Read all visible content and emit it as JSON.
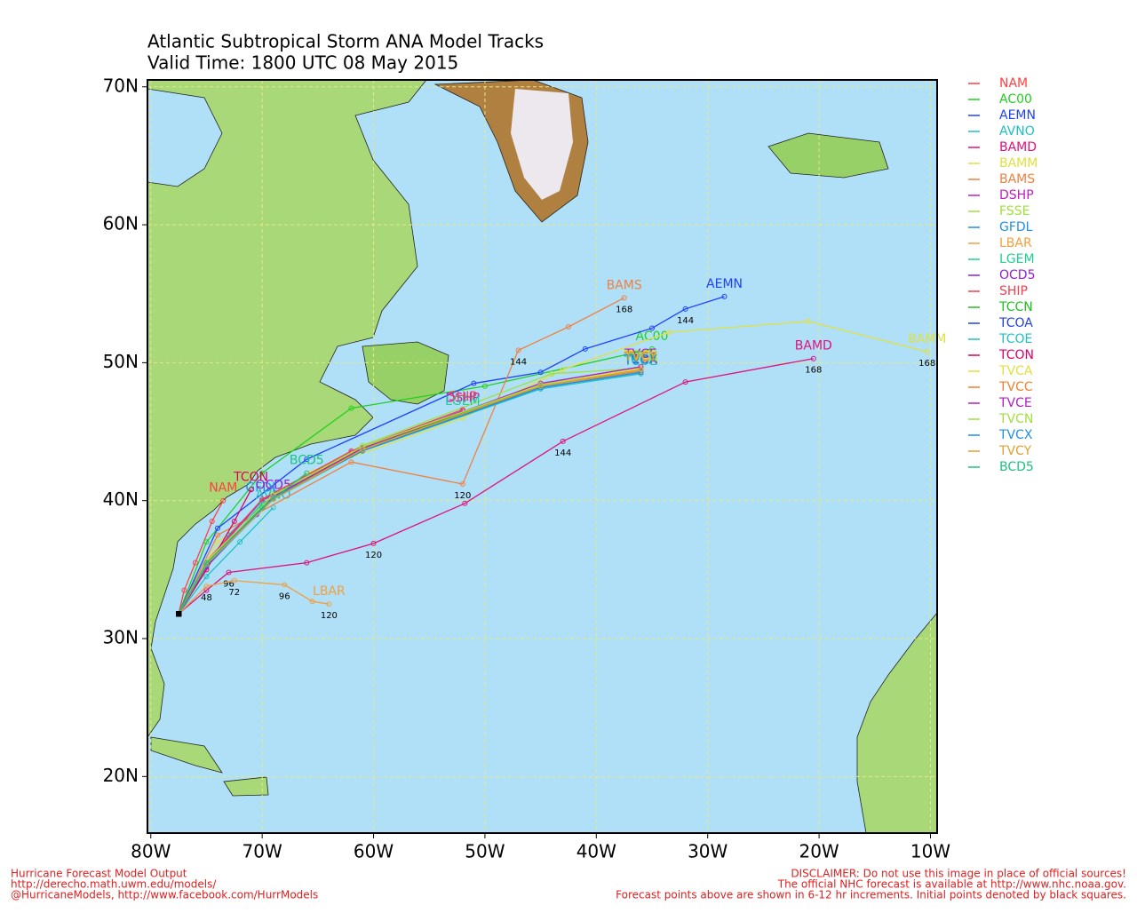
{
  "chart_data": {
    "type": "track-map",
    "title": "Atlantic Subtropical Storm ANA Model Tracks",
    "subtitle": "Valid Time: 1800 UTC 08 May 2015",
    "xlim": [
      -80.3,
      -9.4
    ],
    "ylim": [
      15.9,
      70.5
    ],
    "xticks": [
      {
        "value": -80,
        "label": "80W"
      },
      {
        "value": -70,
        "label": "70W"
      },
      {
        "value": -60,
        "label": "60W"
      },
      {
        "value": -50,
        "label": "50W"
      },
      {
        "value": -40,
        "label": "40W"
      },
      {
        "value": -30,
        "label": "30W"
      },
      {
        "value": -20,
        "label": "20W"
      },
      {
        "value": -10,
        "label": "10W"
      }
    ],
    "yticks": [
      {
        "value": 20,
        "label": "20N"
      },
      {
        "value": 30,
        "label": "30N"
      },
      {
        "value": 40,
        "label": "40N"
      },
      {
        "value": 50,
        "label": "50N"
      },
      {
        "value": 60,
        "label": "60N"
      },
      {
        "value": 70,
        "label": "70N"
      }
    ],
    "grid": true,
    "series": [
      {
        "name": "NAM",
        "color": "#ff4040",
        "x": [
          -77.5,
          -77,
          -76,
          -74.5,
          -73.5
        ],
        "y": [
          31.8,
          33.5,
          35.5,
          38.5,
          40
        ]
      },
      {
        "name": "AC00",
        "color": "#20d020",
        "x": [
          -77.5,
          -75,
          -70,
          -62,
          -50,
          -35
        ],
        "y": [
          31.8,
          37,
          42,
          46.7,
          48.3,
          51
        ]
      },
      {
        "name": "AEMN",
        "color": "#2040ff",
        "x": [
          -77.5,
          -74,
          -66,
          -51,
          -45,
          -41,
          -35,
          -32,
          -28.5
        ],
        "y": [
          31.8,
          38,
          43,
          48.5,
          49.3,
          51,
          52.5,
          53.9,
          54.8
        ],
        "hours": [
          null,
          null,
          null,
          null,
          null,
          null,
          null,
          144,
          null
        ]
      },
      {
        "name": "AVNO",
        "color": "#20c0c0",
        "x": [
          -77.5,
          -75,
          -72,
          -69
        ],
        "y": [
          31.8,
          34.5,
          37,
          39.5
        ]
      },
      {
        "name": "BAMD",
        "color": "#e0107a",
        "x": [
          -77.5,
          -75,
          -73,
          -66,
          -60,
          -51.8,
          -43,
          -32,
          -20.5
        ],
        "y": [
          31.8,
          33.5,
          34.8,
          35.5,
          36.9,
          39.8,
          44.3,
          48.6,
          50.3
        ],
        "hours": [
          null,
          null,
          96,
          null,
          120,
          null,
          144,
          null,
          168
        ]
      },
      {
        "name": "BAMM",
        "color": "#e0e040",
        "x": [
          -77.5,
          -74,
          -66,
          -52,
          -43,
          -33.5,
          -21,
          -10.3
        ],
        "y": [
          31.8,
          37,
          42,
          46,
          49.5,
          52.2,
          53,
          50.8
        ],
        "hours": [
          null,
          null,
          null,
          null,
          null,
          null,
          null,
          168
        ]
      },
      {
        "name": "BAMS",
        "color": "#f08040",
        "x": [
          -77.5,
          -74,
          -62,
          -52,
          -47,
          -42.5,
          -37.5
        ],
        "y": [
          31.8,
          37.5,
          42.8,
          41.2,
          50.9,
          52.6,
          54.7
        ],
        "hours": [
          null,
          null,
          null,
          120,
          144,
          null,
          168
        ]
      },
      {
        "name": "DSHP",
        "color": "#c020c0",
        "x": [
          -77.5,
          -75,
          -70,
          -62,
          -52
        ],
        "y": [
          31.8,
          35.5,
          40,
          43.5,
          46.5
        ]
      },
      {
        "name": "FSSE",
        "color": "#a0e040",
        "x": [
          -77.5,
          -75,
          -69,
          -61,
          -44,
          -36
        ],
        "y": [
          31.8,
          35.5,
          40.5,
          44,
          49.2,
          49.6
        ]
      },
      {
        "name": "GFDL",
        "color": "#2090e0",
        "x": [
          -77.5,
          -76,
          -73,
          -70
        ],
        "y": [
          31.8,
          34,
          37.5,
          40
        ]
      },
      {
        "name": "LBAR",
        "color": "#f0a040",
        "x": [
          -77.5,
          -75,
          -72.5,
          -68,
          -65.5,
          -64
        ],
        "y": [
          31.8,
          33.8,
          34.2,
          33.9,
          32.7,
          32.5
        ],
        "hours": [
          null,
          48,
          72,
          96,
          null,
          120
        ]
      },
      {
        "name": "LGEM",
        "color": "#20d090",
        "x": [
          -77.5,
          -75,
          -70,
          -62,
          -52
        ],
        "y": [
          31.8,
          35.3,
          39.8,
          43.3,
          46.3
        ]
      },
      {
        "name": "OCD5",
        "color": "#9020d0",
        "x": [
          -77.5,
          -75,
          -70.5,
          -69
        ],
        "y": [
          31.8,
          35.2,
          39,
          40.2
        ]
      },
      {
        "name": "SHIP",
        "color": "#f04050",
        "x": [
          -77.5,
          -75,
          -70,
          -62,
          -52
        ],
        "y": [
          31.8,
          35.6,
          40.1,
          43.6,
          46.6
        ]
      },
      {
        "name": "TCCN",
        "color": "#20c020",
        "x": [
          -77.5,
          -75,
          -69,
          -61,
          -45,
          -36
        ],
        "y": [
          31.8,
          35.5,
          40.3,
          43.8,
          48.3,
          49.5
        ]
      },
      {
        "name": "TCOA",
        "color": "#2040e0",
        "x": [
          -77.5,
          -75,
          -69,
          -61,
          -45,
          -36
        ],
        "y": [
          31.8,
          35.4,
          40.2,
          43.7,
          48.2,
          49.3
        ]
      },
      {
        "name": "TCOE",
        "color": "#20c0c0",
        "x": [
          -77.5,
          -75,
          -69,
          -61,
          -45,
          -36
        ],
        "y": [
          31.8,
          35.3,
          40.1,
          43.6,
          48.1,
          49.2
        ]
      },
      {
        "name": "TCON",
        "color": "#e00060",
        "x": [
          -77.5,
          -75,
          -72.5,
          -71
        ],
        "y": [
          31.8,
          35,
          38.5,
          40.8
        ]
      },
      {
        "name": "TVCA",
        "color": "#e0e040",
        "x": [
          -77.5,
          -75,
          -69,
          -61,
          -45,
          -36
        ],
        "y": [
          31.8,
          35.6,
          40.4,
          43.9,
          48.4,
          49.6
        ]
      },
      {
        "name": "TVCC",
        "color": "#f08030",
        "x": [
          -77.5,
          -75,
          -69,
          -61,
          -45,
          -36
        ],
        "y": [
          31.8,
          35.5,
          40.2,
          43.7,
          48.3,
          49.4
        ]
      },
      {
        "name": "TVCE",
        "color": "#b020c0",
        "x": [
          -77.5,
          -75,
          -69,
          -61,
          -45,
          -36
        ],
        "y": [
          31.8,
          35.4,
          40.3,
          43.8,
          48.5,
          49.7
        ]
      },
      {
        "name": "TVCN",
        "color": "#a0e040",
        "x": [
          -77.5,
          -75,
          -69,
          -61,
          -45,
          -36
        ],
        "y": [
          31.8,
          35.5,
          40.4,
          43.9,
          48.4,
          49.5
        ]
      },
      {
        "name": "TVCX",
        "color": "#2090e0",
        "x": [
          -77.5,
          -75,
          -69,
          -61,
          -45,
          -36
        ],
        "y": [
          31.8,
          35.3,
          40.2,
          43.6,
          48.2,
          49.3
        ]
      },
      {
        "name": "TVCY",
        "color": "#e0a030",
        "x": [
          -77.5,
          -75,
          -69,
          -61,
          -45,
          -36
        ],
        "y": [
          31.8,
          35.4,
          40.1,
          43.7,
          48.3,
          49.5
        ]
      },
      {
        "name": "BCD5",
        "color": "#20c080",
        "x": [
          -77.5,
          -75,
          -70,
          -66
        ],
        "y": [
          31.8,
          35.5,
          39.5,
          42
        ]
      }
    ]
  },
  "footer": {
    "left": [
      "Hurricane Forecast Model Output",
      "http://derecho.math.uwm.edu/models/",
      "@HurricaneModels, http://www.facebook.com/HurrModels"
    ],
    "right": [
      "DISCLAIMER: Do not use this image in place of official sources!",
      "The official NHC forecast is available at http://www.nhc.noaa.gov.",
      "Forecast points above are shown in 6-12 hr increments. Initial points denoted by black squares."
    ]
  }
}
